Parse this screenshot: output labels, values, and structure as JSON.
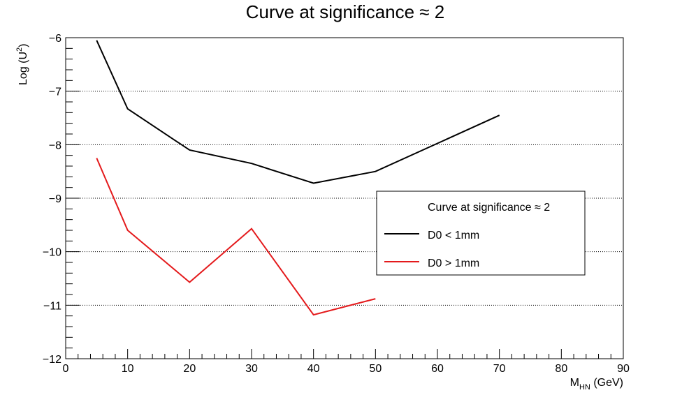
{
  "chart_data": {
    "type": "line",
    "title": "Curve at significance ≈ 2",
    "xlabel": {
      "main": "M",
      "sub": "HN",
      "rest": " (GeV)"
    },
    "ylabel": {
      "main": "Log (U",
      "sup": "2",
      "rest": ")"
    },
    "xlim": [
      0,
      90
    ],
    "ylim": [
      -12,
      -6
    ],
    "x_ticks": [
      0,
      10,
      20,
      30,
      40,
      50,
      60,
      70,
      80,
      90
    ],
    "y_ticks": [
      -12,
      -11,
      -10,
      -9,
      -8,
      -7,
      -6
    ],
    "x_tick_labels": [
      "0",
      "10",
      "20",
      "30",
      "40",
      "50",
      "60",
      "70",
      "80",
      "90"
    ],
    "y_tick_labels": [
      "−12",
      "−11",
      "−10",
      "−9",
      "−8",
      "−7",
      "−6"
    ],
    "grid": "horizontal dotted",
    "legend": {
      "title": "Curve at significance ≈ 2",
      "placement": "right-center"
    },
    "series": [
      {
        "name": "D0 < 1mm",
        "color": "#000000",
        "x": [
          5,
          10,
          20,
          30,
          40,
          50,
          70
        ],
        "y": [
          -6.05,
          -7.33,
          -8.1,
          -8.35,
          -8.72,
          -8.5,
          -7.45
        ]
      },
      {
        "name": "D0 > 1mm",
        "color": "#e41a1c",
        "x": [
          5,
          10,
          20,
          30,
          40,
          50
        ],
        "y": [
          -8.25,
          -9.6,
          -10.57,
          -9.57,
          -11.18,
          -10.88
        ]
      }
    ]
  }
}
